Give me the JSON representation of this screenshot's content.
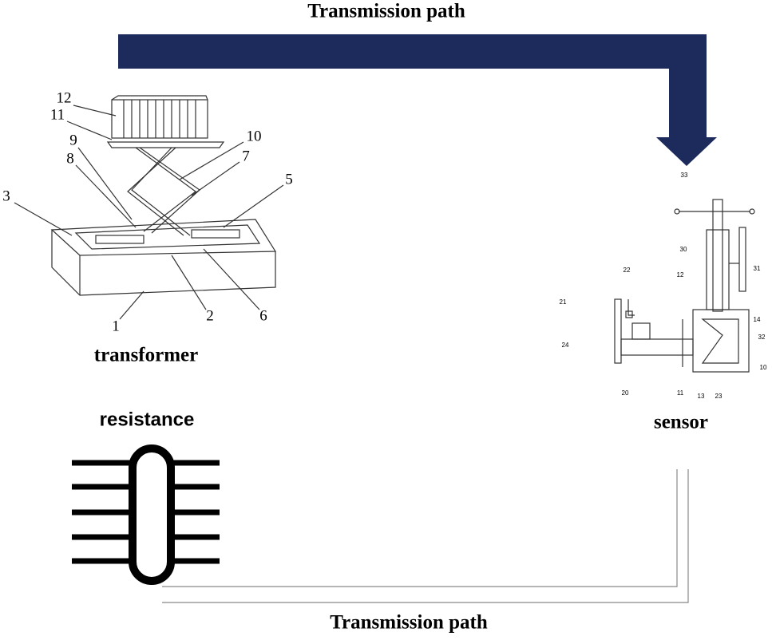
{
  "header": {
    "title": "Transmission path"
  },
  "nodes": [
    {
      "label": "transformer",
      "parts": [
        "12",
        "11",
        "10",
        "9",
        "8",
        "7",
        "5",
        "3",
        "1",
        "2",
        "6"
      ]
    },
    {
      "label": "resistance"
    },
    {
      "label": "sensor",
      "parts": [
        "33",
        "30",
        "31",
        "12",
        "22",
        "21",
        "14",
        "32",
        "24",
        "10",
        "20",
        "11",
        "13",
        "23"
      ]
    }
  ],
  "footer": {
    "title": "Transmission path"
  }
}
